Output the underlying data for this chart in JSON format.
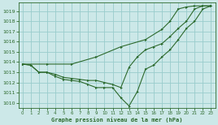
{
  "title": "Graphe pression niveau de la mer (hPa)",
  "bg_color": "#cce8e8",
  "grid_color": "#99cccc",
  "line_color": "#2d6a2d",
  "xlim": [
    -0.5,
    23.5
  ],
  "ylim": [
    1009.5,
    1019.8
  ],
  "yticks": [
    1010,
    1011,
    1012,
    1013,
    1014,
    1015,
    1016,
    1017,
    1018,
    1019
  ],
  "xticks": [
    0,
    1,
    2,
    3,
    4,
    5,
    6,
    7,
    8,
    9,
    10,
    11,
    12,
    13,
    14,
    15,
    16,
    17,
    18,
    19,
    20,
    21,
    22,
    23
  ],
  "line1_x": [
    0,
    1,
    2,
    3,
    4,
    5,
    6,
    7,
    8,
    9,
    10,
    11,
    12,
    13,
    14,
    15,
    16,
    17,
    18,
    19,
    20,
    21,
    22,
    23
  ],
  "line1_y": [
    1013.8,
    1013.7,
    1013.0,
    1013.0,
    1012.6,
    1012.3,
    1012.2,
    1012.1,
    1011.8,
    1011.5,
    1011.5,
    1011.5,
    1010.5,
    1009.7,
    1011.1,
    1013.3,
    1013.7,
    1014.5,
    1015.2,
    1016.2,
    1017.3,
    1018.0,
    1019.2,
    1019.5
  ],
  "line2_x": [
    0,
    1,
    2,
    3,
    4,
    5,
    6,
    7,
    8,
    9,
    10,
    11,
    12,
    13,
    14,
    15,
    16,
    17,
    18,
    19,
    20,
    21,
    22,
    23
  ],
  "line2_y": [
    1013.8,
    1013.7,
    1013.0,
    1013.0,
    1012.8,
    1012.5,
    1012.4,
    1012.3,
    1012.2,
    1012.2,
    1012.0,
    1011.8,
    1011.5,
    1013.5,
    1014.5,
    1015.2,
    1015.5,
    1015.8,
    1016.5,
    1017.3,
    1018.0,
    1019.2,
    1019.5,
    1019.5
  ],
  "line3_x": [
    0,
    3,
    6,
    9,
    12,
    15,
    17,
    18,
    19,
    20,
    21,
    22,
    23
  ],
  "line3_y": [
    1013.8,
    1013.8,
    1013.8,
    1014.5,
    1015.5,
    1016.2,
    1017.2,
    1018.0,
    1019.2,
    1019.4,
    1019.5,
    1019.5,
    1019.5
  ]
}
